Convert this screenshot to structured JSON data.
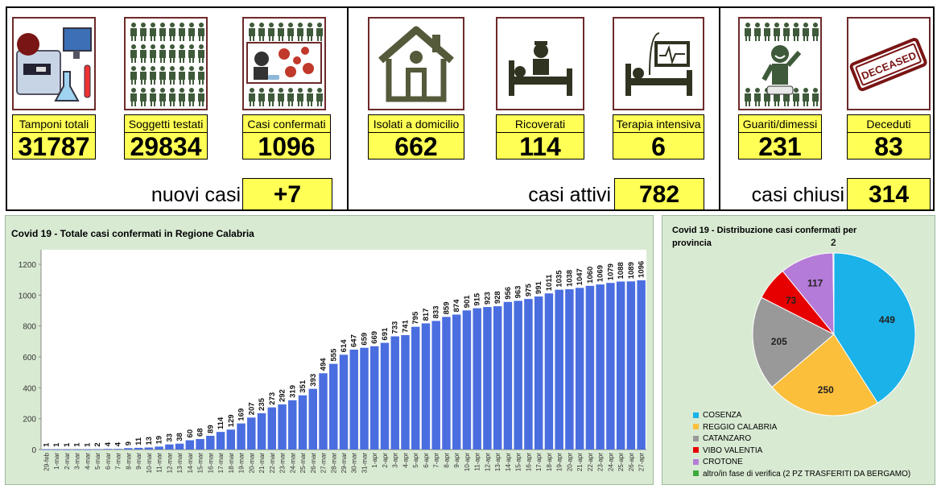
{
  "top": {
    "tests": {
      "label": "Tamponi totali",
      "value": "31787"
    },
    "tested": {
      "label": "Soggetti testati",
      "value": "29834"
    },
    "confirmed": {
      "label": "Casi confermati",
      "value": "1096"
    },
    "home": {
      "label": "Isolati a domicilio",
      "value": "662"
    },
    "hospital": {
      "label": "Ricoverati",
      "value": "114"
    },
    "icu": {
      "label": "Terapia intensiva",
      "value": "6"
    },
    "recovered": {
      "label": "Guariti/dimessi",
      "value": "231"
    },
    "deceased": {
      "label": "Deceduti",
      "value": "83"
    },
    "new_cases": {
      "label": "nuovi casi",
      "value": "+7"
    },
    "active": {
      "label": "casi attivi",
      "value": "782"
    },
    "closed": {
      "label": "casi chiusi",
      "value": "314"
    },
    "stamp_text": "DECEASED"
  },
  "chart_data": [
    {
      "type": "bar",
      "title": "Covid 19 - Totale casi confermati in Regione Calabria",
      "ylim": [
        0,
        1200
      ],
      "yticks": [
        0,
        200,
        400,
        600,
        800,
        1000,
        1200
      ],
      "grid": false,
      "bar_color": "#4a6ee0",
      "categories": [
        "29-feb",
        "1-mar",
        "2-mar",
        "3-mar",
        "4-mar",
        "5-mar",
        "6-mar",
        "7-mar",
        "8-mar",
        "9-mar",
        "10-mar",
        "11-mar",
        "12-mar",
        "13-mar",
        "14-mar",
        "15-mar",
        "16-mar",
        "17-mar",
        "18-mar",
        "19-mar",
        "20-mar",
        "21-mar",
        "22-mar",
        "23-mar",
        "24-mar",
        "25-mar",
        "26-mar",
        "27-mar",
        "28-mar",
        "29-mar",
        "30-mar",
        "31-mar",
        "1-apr",
        "2-apr",
        "3-apr",
        "4-apr",
        "5-apr",
        "6-apr",
        "7-apr",
        "8-apr",
        "9-apr",
        "10-apr",
        "11-apr",
        "12-apr",
        "13-apr",
        "14-apr",
        "15-apr",
        "16-apr",
        "17-apr",
        "18-apr",
        "19-apr",
        "20-apr",
        "21-apr",
        "22-apr",
        "23-apr",
        "24-apr",
        "25-apr",
        "26-apr",
        "27-apr"
      ],
      "values": [
        1,
        1,
        1,
        1,
        1,
        2,
        4,
        4,
        9,
        11,
        13,
        19,
        33,
        38,
        60,
        68,
        89,
        114,
        129,
        169,
        207,
        235,
        273,
        292,
        319,
        351,
        393,
        494,
        555,
        614,
        647,
        659,
        669,
        691,
        733,
        741,
        795,
        817,
        833,
        859,
        874,
        901,
        915,
        923,
        928,
        956,
        963,
        975,
        991,
        1011,
        1035,
        1038,
        1047,
        1060,
        1069,
        1079,
        1088,
        1089,
        1096
      ]
    },
    {
      "type": "pie",
      "title": "Covid 19 - Distribuzione casi confermati per provincia",
      "series": [
        {
          "name": "COSENZA",
          "value": 449,
          "color": "#1ab2e8"
        },
        {
          "name": "REGGIO CALABRIA",
          "value": 250,
          "color": "#fbbf3c"
        },
        {
          "name": "CATANZARO",
          "value": 205,
          "color": "#999999"
        },
        {
          "name": "VIBO VALENTIA",
          "value": 73,
          "color": "#e60000"
        },
        {
          "name": "CROTONE",
          "value": 117,
          "color": "#b57bd8"
        },
        {
          "name": "altro/in fase di verifica (2 PZ TRASFERITI DA BERGAMO)",
          "value": 2,
          "color": "#3aaa3a"
        }
      ],
      "legend_position": "bottom-left"
    }
  ]
}
